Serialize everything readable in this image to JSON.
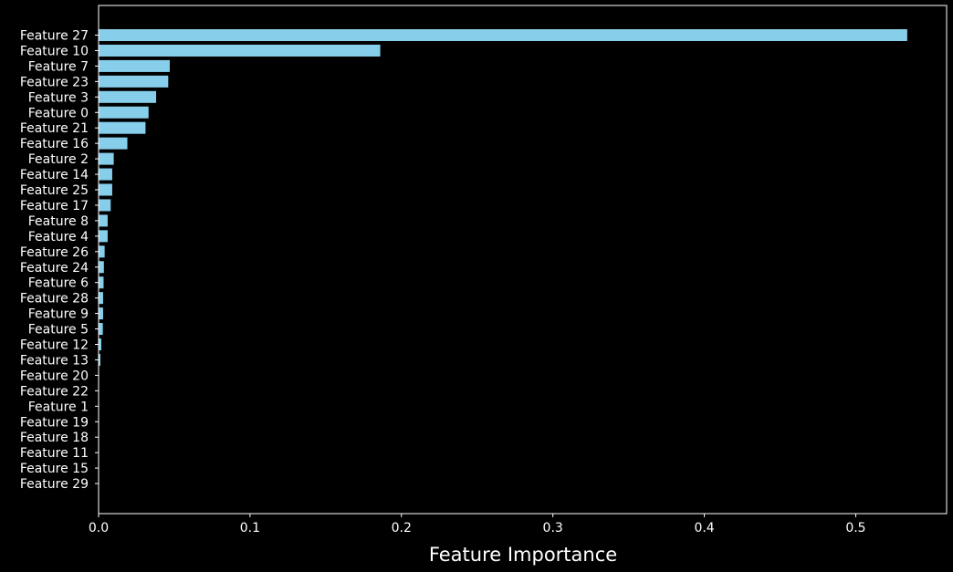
{
  "chart_data": {
    "type": "bar",
    "orientation": "horizontal",
    "title": "",
    "xlabel": "Feature Importance",
    "ylabel": "",
    "xlim": [
      0,
      0.56
    ],
    "x_ticks": [
      0.0,
      0.1,
      0.2,
      0.3,
      0.4,
      0.5
    ],
    "x_tick_labels": [
      "0.0",
      "0.1",
      "0.2",
      "0.3",
      "0.4",
      "0.5"
    ],
    "grid": false,
    "categories": [
      "Feature 27",
      "Feature 10",
      "Feature 7",
      "Feature 23",
      "Feature 3",
      "Feature 0",
      "Feature 21",
      "Feature 16",
      "Feature 2",
      "Feature 14",
      "Feature 25",
      "Feature 17",
      "Feature 8",
      "Feature 4",
      "Feature 26",
      "Feature 24",
      "Feature 6",
      "Feature 28",
      "Feature 9",
      "Feature 5",
      "Feature 12",
      "Feature 13",
      "Feature 20",
      "Feature 22",
      "Feature 1",
      "Feature 19",
      "Feature 18",
      "Feature 11",
      "Feature 15",
      "Feature 29"
    ],
    "values": [
      0.534,
      0.186,
      0.047,
      0.046,
      0.038,
      0.033,
      0.031,
      0.019,
      0.01,
      0.009,
      0.009,
      0.008,
      0.006,
      0.006,
      0.004,
      0.0035,
      0.0033,
      0.003,
      0.003,
      0.0028,
      0.0018,
      0.0012,
      0.0003,
      0.0002,
      0.0,
      0.0,
      0.0,
      0.0,
      0.0,
      0.0
    ],
    "bar_color": "#87ceeb",
    "background_color": "#000000",
    "axis_color": "#ffffff",
    "text_color": "#ffffff"
  }
}
